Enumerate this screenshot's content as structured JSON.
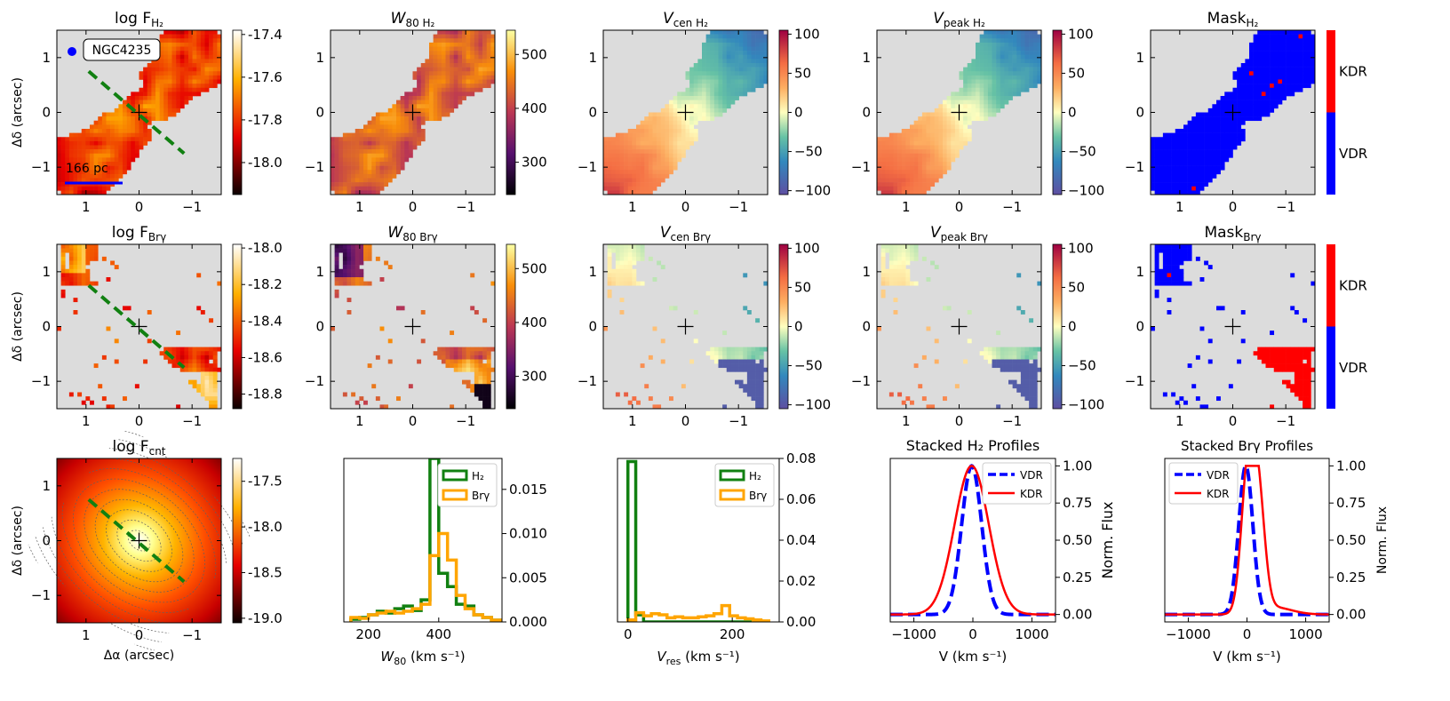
{
  "galaxy": "NGC4235",
  "scalebar_label": "166 pc",
  "axis_labels": {
    "ra": "Δα (arcsec)",
    "dec": "Δδ (arcsec)",
    "map_xticks": [
      "1",
      "0",
      "−1"
    ],
    "map_yticks": [
      "1",
      "0",
      "−1"
    ]
  },
  "colors": {
    "h2": "#118011",
    "brg": "#ffa500",
    "vdr": "#0000ff",
    "kdr": "#ff0000",
    "masked": "#dcdcdc",
    "slit": "#118011"
  },
  "maps": [
    {
      "id": "logF_h2",
      "title": "log F",
      "sub": "H₂",
      "colormap": "hot",
      "range": [
        -18.15,
        -17.38
      ],
      "ticks": [
        "-17.4",
        "-17.6",
        "-17.8",
        "-18.0"
      ],
      "row": 0
    },
    {
      "id": "w80_h2",
      "title": "W",
      "sub": "80 H₂",
      "colormap": "inferno",
      "range": [
        240,
        545
      ],
      "ticks": [
        "500",
        "400",
        "300"
      ],
      "row": 0
    },
    {
      "id": "vcen_h2",
      "title": "V",
      "sub": "cen H₂",
      "colormap": "spectral",
      "range": [
        -105,
        105
      ],
      "ticks": [
        "100",
        "50",
        "0",
        "−50",
        "−100"
      ],
      "row": 0
    },
    {
      "id": "vpeak_h2",
      "title": "V",
      "sub": "peak H₂",
      "colormap": "spectral",
      "range": [
        -105,
        105
      ],
      "ticks": [
        "100",
        "50",
        "0",
        "−50",
        "−100"
      ],
      "row": 0
    },
    {
      "id": "mask_h2",
      "title": "Mask",
      "sub": "H₂",
      "colormap": "mask",
      "ticks": [
        "KDR",
        "VDR"
      ],
      "row": 0
    },
    {
      "id": "logF_brg",
      "title": "log F",
      "sub": "Brγ",
      "colormap": "hot",
      "range": [
        -18.88,
        -17.98
      ],
      "ticks": [
        "-18.0",
        "-18.2",
        "-18.4",
        "-18.6",
        "-18.8"
      ],
      "row": 1
    },
    {
      "id": "w80_brg",
      "title": "W",
      "sub": "80 Brγ",
      "colormap": "inferno",
      "range": [
        240,
        545
      ],
      "ticks": [
        "500",
        "400",
        "300"
      ],
      "row": 1
    },
    {
      "id": "vcen_brg",
      "title": "V",
      "sub": "cen Brγ",
      "colormap": "spectral",
      "range": [
        -105,
        105
      ],
      "ticks": [
        "100",
        "50",
        "0",
        "−50",
        "−100"
      ],
      "row": 1
    },
    {
      "id": "vpeak_brg",
      "title": "V",
      "sub": "peak Brγ",
      "colormap": "spectral",
      "range": [
        -105,
        105
      ],
      "ticks": [
        "100",
        "50",
        "0",
        "−50",
        "−100"
      ],
      "row": 1
    },
    {
      "id": "mask_brg",
      "title": "Mask",
      "sub": "Brγ",
      "colormap": "mask",
      "ticks": [
        "KDR",
        "VDR"
      ],
      "row": 1
    },
    {
      "id": "logF_cnt",
      "title": "log F",
      "sub": "cnt",
      "colormap": "hot",
      "range": [
        -19.05,
        -17.25
      ],
      "ticks": [
        "-17.5",
        "-18.0",
        "-18.5",
        "-19.0"
      ],
      "row": 2
    }
  ],
  "chart_data": [
    {
      "type": "bar",
      "id": "w80_hist",
      "title": "",
      "xlabel": "W80 (km s⁻¹)",
      "xlabel_main": "W",
      "xlabel_sub": "80",
      "xlabel_unit": " (km s⁻¹)",
      "xlim": [
        130,
        580
      ],
      "ylim": [
        0,
        0.0185
      ],
      "xticks": [
        200,
        400
      ],
      "yticks": [
        0.0,
        0.005,
        0.01,
        0.015
      ],
      "ytick_labels": [
        "0.000",
        "0.005",
        "0.010",
        "0.015"
      ],
      "bin_edges": [
        150,
        175,
        200,
        225,
        250,
        275,
        300,
        325,
        350,
        375,
        400,
        425,
        450,
        475,
        500,
        525,
        550,
        575
      ],
      "series": [
        {
          "name": "H₂",
          "values": [
            0.0003,
            0.0005,
            0.0008,
            0.0012,
            0.001,
            0.0015,
            0.0018,
            0.0013,
            0.0025,
            0.0185,
            0.0055,
            0.004,
            0.002,
            0.0018,
            0.0008,
            0.0005,
            0.0002
          ]
        },
        {
          "name": "Brγ",
          "values": [
            0.0005,
            0.0004,
            0.0008,
            0.001,
            0.0012,
            0.001,
            0.0012,
            0.0015,
            0.002,
            0.0075,
            0.01,
            0.007,
            0.003,
            0.0015,
            0.0008,
            0.0005,
            0.0002
          ]
        }
      ]
    },
    {
      "type": "bar",
      "id": "vres_hist",
      "title": "",
      "xlabel": "Vres (km s⁻¹)",
      "xlabel_main": "V",
      "xlabel_sub": "res",
      "xlabel_unit": " (km s⁻¹)",
      "xlim": [
        -20,
        290
      ],
      "ylim": [
        0,
        0.08
      ],
      "xticks": [
        0,
        200
      ],
      "yticks": [
        0.0,
        0.02,
        0.04,
        0.06,
        0.08
      ],
      "ytick_labels": [
        "0.00",
        "0.02",
        "0.04",
        "0.06",
        "0.08"
      ],
      "bin_edges": [
        0,
        15,
        30,
        45,
        60,
        75,
        90,
        105,
        120,
        135,
        150,
        165,
        180,
        195,
        210,
        225,
        240,
        255,
        270
      ],
      "series": [
        {
          "name": "H₂",
          "values": [
            0.0785,
            0.0035,
            0,
            0,
            0,
            0,
            0,
            0,
            0,
            0,
            0,
            0,
            0,
            0,
            0,
            0,
            0,
            0
          ]
        },
        {
          "name": "Brγ",
          "values": [
            0.001,
            0.0045,
            0.003,
            0.004,
            0.0035,
            0.002,
            0.0025,
            0.002,
            0.002,
            0.0025,
            0.003,
            0.004,
            0.008,
            0.003,
            0.002,
            0.0015,
            0.001,
            0.0005
          ]
        }
      ]
    },
    {
      "type": "line",
      "id": "stacked_h2",
      "title": "Stacked H₂ Profiles",
      "xlabel": "V (km s⁻¹)",
      "ylabel": "Norm. Flux",
      "xlim": [
        -1400,
        1400
      ],
      "ylim": [
        -0.05,
        1.05
      ],
      "xticks": [
        -1000,
        0,
        1000
      ],
      "xtick_labels": [
        "−1000",
        "0",
        "1000"
      ],
      "yticks": [
        0.0,
        0.25,
        0.5,
        0.75,
        1.0
      ],
      "ytick_labels": [
        "0.00",
        "0.25",
        "0.50",
        "0.75",
        "1.00"
      ],
      "series": [
        {
          "name": "VDR",
          "style": "dashed",
          "profile": "gauss",
          "center": -20,
          "sigma": 170
        },
        {
          "name": "KDR",
          "style": "solid",
          "profile": "gauss",
          "center": -20,
          "sigma": 290
        }
      ]
    },
    {
      "type": "line",
      "id": "stacked_brg",
      "title": "Stacked Brγ Profiles",
      "xlabel": "V (km s⁻¹)",
      "ylabel": "Norm. Flux",
      "xlim": [
        -1400,
        1400
      ],
      "ylim": [
        -0.05,
        1.05
      ],
      "xticks": [
        -1000,
        0,
        1000
      ],
      "xtick_labels": [
        "−1000",
        "0",
        "1000"
      ],
      "yticks": [
        0.0,
        0.25,
        0.5,
        0.75,
        1.0
      ],
      "ytick_labels": [
        "0.00",
        "0.25",
        "0.50",
        "0.75",
        "1.00"
      ],
      "series": [
        {
          "name": "VDR",
          "style": "dashed",
          "profile": "gauss",
          "center": -20,
          "sigma": 120
        },
        {
          "name": "KDR",
          "style": "solid",
          "profile": "double",
          "center": 80,
          "sigma": 130
        }
      ]
    }
  ]
}
